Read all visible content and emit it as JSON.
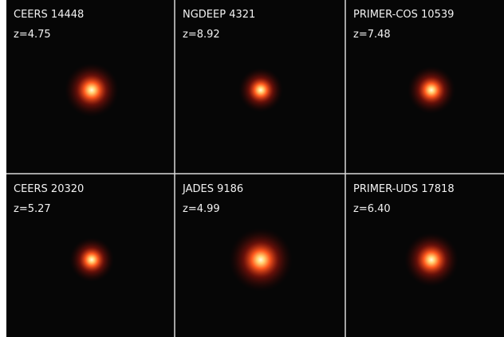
{
  "panels": [
    {
      "name": "CEERS 14448",
      "redshift": "z=4.75"
    },
    {
      "name": "NGDEEP 4321",
      "redshift": "z=8.92"
    },
    {
      "name": "PRIMER-COS 10539",
      "redshift": "z=7.48"
    },
    {
      "name": "CEERS 20320",
      "redshift": "z=5.27"
    },
    {
      "name": "JADES 9186",
      "redshift": "z=4.99"
    },
    {
      "name": "PRIMER-UDS 17818",
      "redshift": "z=6.40"
    }
  ]
}
